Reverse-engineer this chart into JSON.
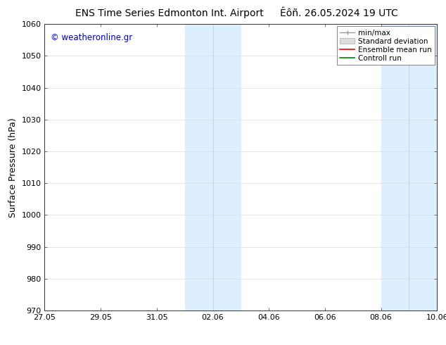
{
  "title_left": "ENS Time Series Edmonton Int. Airport",
  "title_right": "Êôñ. 26.05.2024 19 UTC",
  "ylabel": "Surface Pressure (hPa)",
  "ylim": [
    970,
    1060
  ],
  "yticks": [
    970,
    980,
    990,
    1000,
    1010,
    1020,
    1030,
    1040,
    1050,
    1060
  ],
  "xlim_start": 0,
  "xlim_end": 14,
  "xtick_positions": [
    0,
    2,
    4,
    6,
    8,
    10,
    12,
    14
  ],
  "xtick_labels": [
    "27.05",
    "29.05",
    "31.05",
    "02.06",
    "04.06",
    "06.06",
    "08.06",
    "10.06"
  ],
  "shaded_bands": [
    {
      "x_start": 5,
      "x_end": 7,
      "color": "#ddeeff"
    },
    {
      "x_start": 12,
      "x_end": 14,
      "color": "#ddeeff"
    }
  ],
  "band_dividers": [
    6,
    13
  ],
  "watermark_text": "© weatheronline.gr",
  "watermark_color": "#0000bb",
  "legend_items": [
    {
      "label": "min/max",
      "color": "#aaaaaa",
      "style": "errorbar"
    },
    {
      "label": "Standard deviation",
      "color": "#cccccc",
      "style": "bar"
    },
    {
      "label": "Ensemble mean run",
      "color": "#ff0000",
      "style": "line"
    },
    {
      "label": "Controll run",
      "color": "#008000",
      "style": "line"
    }
  ],
  "bg_color": "#ffffff",
  "title_fontsize": 10,
  "tick_fontsize": 8,
  "ylabel_fontsize": 9
}
